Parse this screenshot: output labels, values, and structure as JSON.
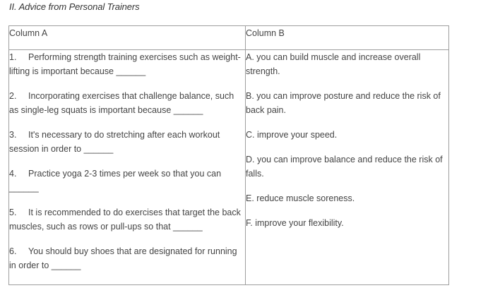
{
  "section_title": "II. Advice from Personal Trainers",
  "table": {
    "header_a": "Column A",
    "header_b": "Column B",
    "column_a": [
      {
        "num": "1.",
        "text": "Performing strength training exercises such as weight-lifting is important because ______"
      },
      {
        "num": "2.",
        "text": "Incorporating exercises that challenge balance, such as single-leg squats is important because ______"
      },
      {
        "num": "3.",
        "text": "It's necessary to do stretching after each workout session in order to ______"
      },
      {
        "num": "4.",
        "text": "Practice yoga 2-3 times per week so that you can ______"
      },
      {
        "num": "5.",
        "text": "It is recommended to do exercises that target the back muscles, such as rows or pull-ups so that ______"
      },
      {
        "num": "6.",
        "text": "You should buy shoes that are designated for running in order to ______"
      }
    ],
    "column_b": [
      "A. you can build muscle and increase overall strength.",
      "B. you can improve posture and reduce the risk of back pain.",
      "C. improve your speed.",
      "D. you can improve balance and reduce the risk of falls.",
      "E. reduce muscle soreness.",
      "F. improve your flexibility."
    ]
  }
}
